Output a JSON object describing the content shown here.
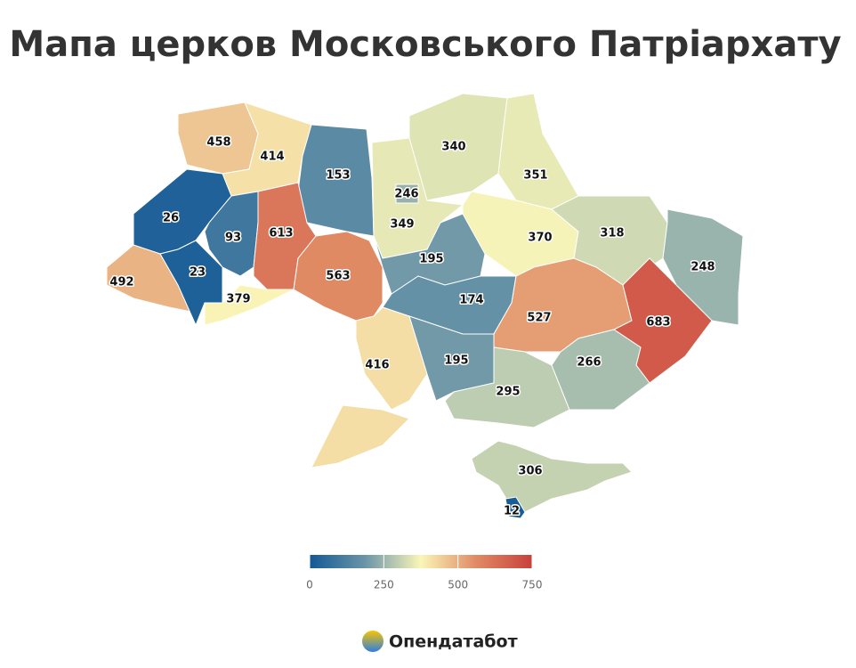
{
  "chart_data": {
    "type": "choropleth",
    "title": "Мапа церков Московського Патріархату",
    "values": [
      458,
      414,
      153,
      340,
      351,
      26,
      93,
      613,
      349,
      246,
      370,
      318,
      248,
      492,
      23,
      379,
      563,
      195,
      174,
      527,
      683,
      416,
      195,
      295,
      266,
      306,
      12
    ],
    "colorscale": [
      "#135996",
      "#6b95a7",
      "#faf6b8",
      "#e08a64",
      "#c8403b"
    ],
    "clim": [
      0,
      750
    ],
    "cticks": [
      0,
      250,
      500,
      750
    ]
  },
  "footer": {
    "brand": "Опендатабот"
  }
}
